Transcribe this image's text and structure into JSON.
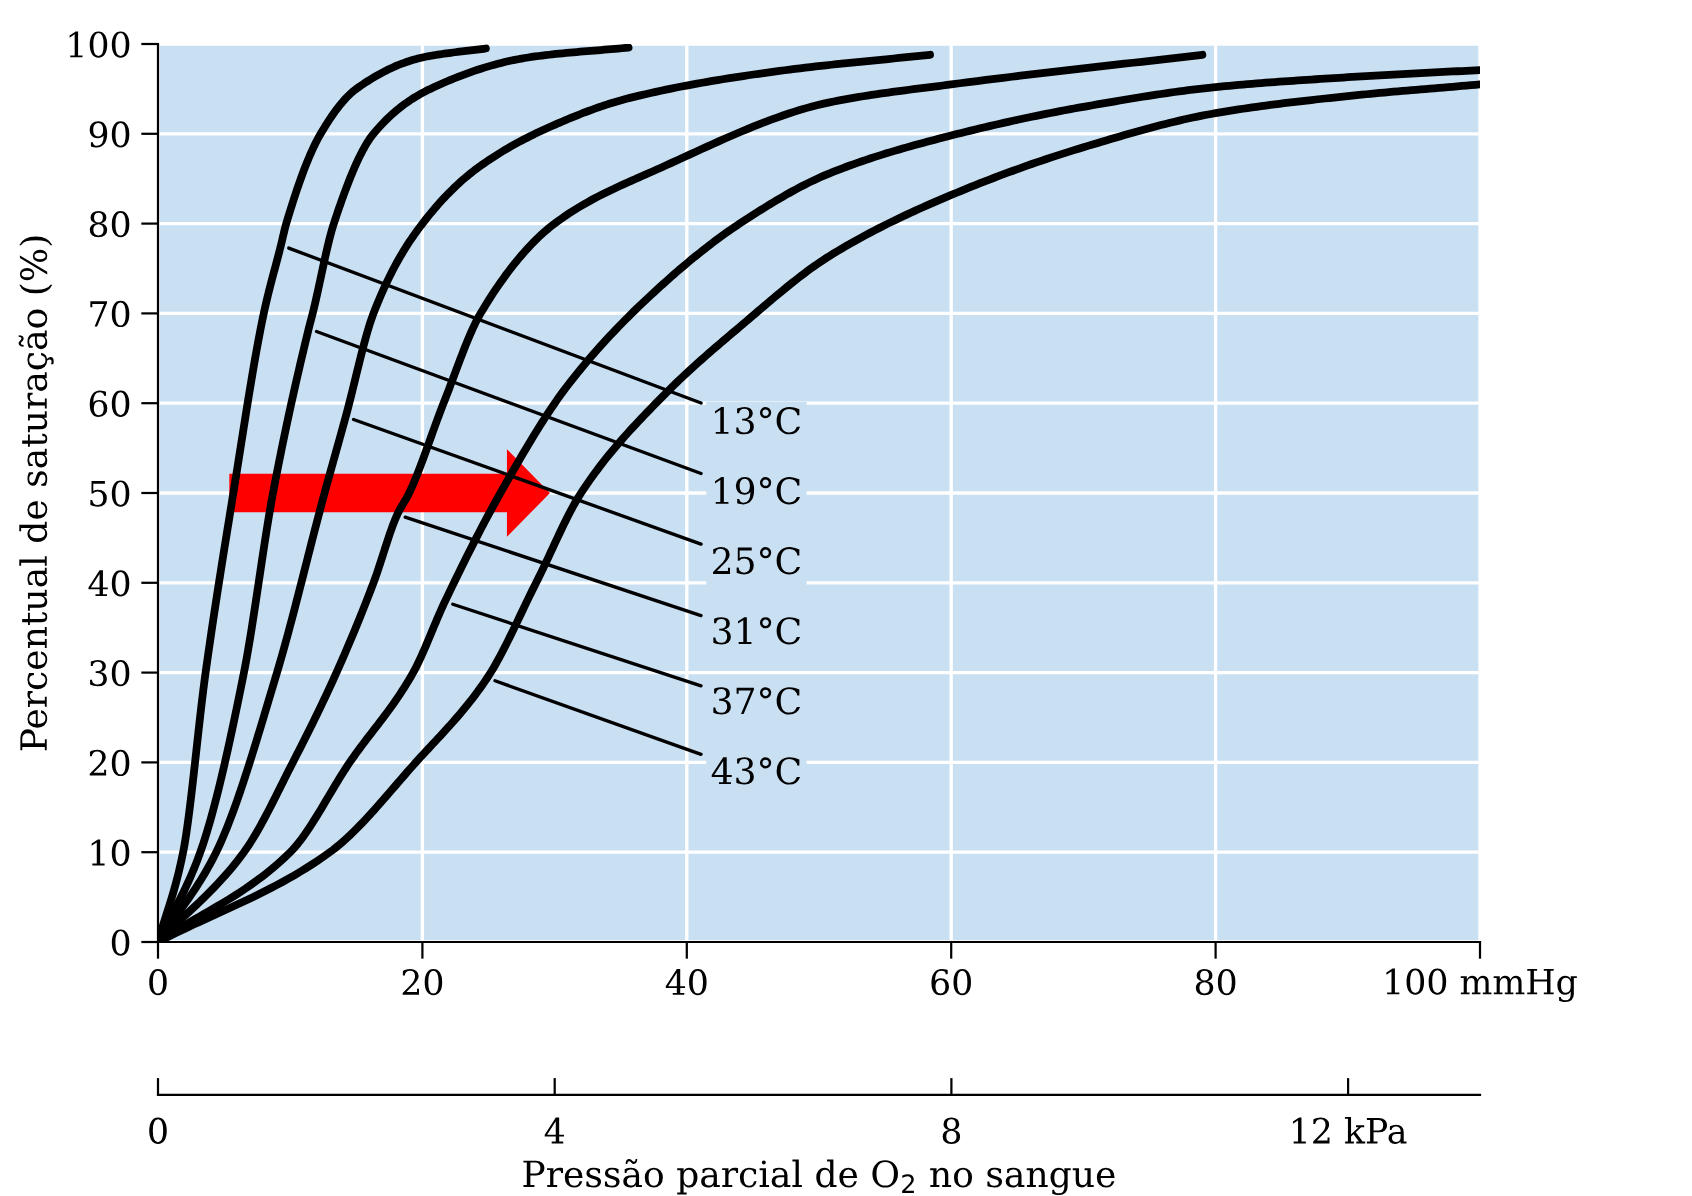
{
  "chart_data": {
    "type": "line",
    "ylabel": "Percentual de saturação (%)",
    "x2label": "Pressão parcial de O$_{2}$ no sangue",
    "xlim": [
      0,
      100
    ],
    "xticks": [
      0,
      20,
      40,
      60,
      80,
      {
        "value": 100,
        "label": "100 mmHg"
      }
    ],
    "x2lim": [
      0,
      13.33
    ],
    "x2ticks": [
      0,
      4,
      8,
      {
        "value": 12,
        "label": "12 kPa"
      }
    ],
    "ylim": [
      0,
      100
    ],
    "yticks": [
      0,
      10,
      20,
      30,
      40,
      50,
      60,
      70,
      80,
      90,
      100
    ],
    "grid": true,
    "marker": "none",
    "line_style": "solid",
    "series": [
      {
        "color": "#000000",
        "x": [
          0,
          1.9,
          3.6,
          5.7,
          8.0,
          9.3,
          9.7,
          12.3,
          15,
          20,
          24.8
        ],
        "values": [
          0,
          10,
          30,
          50,
          70,
          77.6,
          80,
          90,
          95,
          98.5,
          99.5
        ]
      },
      {
        "color": "#000000",
        "x": [
          0,
          3.2,
          6.5,
          8.7,
          11.4,
          11.7,
          13.3,
          16.3,
          20.6,
          28,
          35.6
        ],
        "values": [
          0,
          10,
          30,
          50,
          68.3,
          70,
          80,
          90,
          95,
          98.5,
          99.6
        ]
      },
      {
        "color": "#000000",
        "x": [
          0,
          4.4,
          9.0,
          12.6,
          14.2,
          16.3,
          19.5,
          24,
          30,
          35.7,
          47,
          58.4
        ],
        "values": [
          0,
          10,
          30,
          50,
          58.5,
          70,
          79,
          86,
          91,
          94,
          97,
          98.8
        ]
      },
      {
        "color": "#000000",
        "x": [
          0,
          6.5,
          10.2,
          13.5,
          16.3,
          18.1,
          19,
          21.6,
          24.4,
          30,
          38,
          50.8,
          60,
          79
        ],
        "values": [
          0,
          10,
          20,
          30,
          40,
          47.6,
          50,
          60,
          70,
          80,
          86.2,
          93.5,
          95.5,
          98.8
        ]
      },
      {
        "color": "#000000",
        "x": [
          0,
          10,
          14.5,
          19.3,
          21.7,
          25.9,
          31,
          38,
          44,
          50.8,
          59.7,
          70,
          80,
          90,
          100
        ],
        "values": [
          0,
          10,
          20,
          30,
          37.9,
          50,
          62,
          73,
          80,
          85.6,
          89.7,
          93,
          95.2,
          96.3,
          97.1
        ]
      },
      {
        "color": "#000000",
        "x": [
          0,
          13,
          19.5,
          24.9,
          28.6,
          32,
          38,
          44,
          50.8,
          59.7,
          70,
          80,
          90,
          100
        ],
        "values": [
          0,
          10,
          20,
          29.4,
          40,
          50,
          60.5,
          68.5,
          76.4,
          83,
          88.5,
          92.3,
          94.2,
          95.5
        ]
      }
    ],
    "annotations": [
      {
        "text": "13°C",
        "x": 9.3,
        "y": 77.6
      },
      {
        "text": "19°C",
        "x": 11.4,
        "y": 68.3
      },
      {
        "text": "25°C",
        "x": 14.2,
        "y": 58.5
      },
      {
        "text": "31°C",
        "x": 18.1,
        "y": 47.6
      },
      {
        "text": "37°C",
        "x": 21.7,
        "y": 37.9
      },
      {
        "text": "43°C",
        "x": 24.9,
        "y": 29.4
      }
    ]
  }
}
